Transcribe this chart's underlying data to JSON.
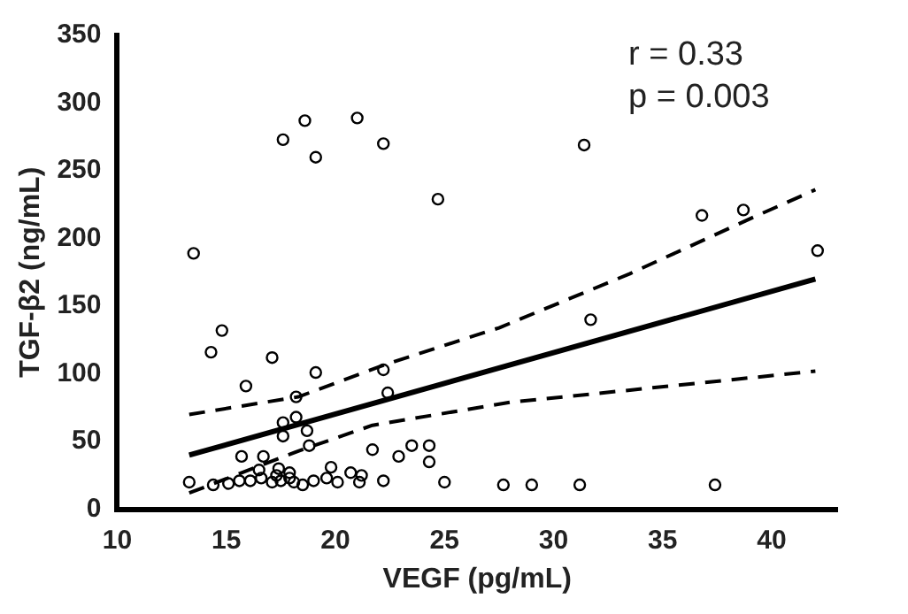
{
  "chart_data": {
    "type": "scatter",
    "xlabel": "VEGF (pg/mL)",
    "ylabel": "TGF-β2 (ng/mL)",
    "xlim": [
      10,
      43
    ],
    "xticks": [
      10,
      15,
      20,
      25,
      30,
      35,
      40
    ],
    "ylim": [
      0,
      350
    ],
    "yticks": [
      0,
      50,
      100,
      150,
      200,
      250,
      300,
      350
    ],
    "grid": false,
    "legend": false,
    "annotations": [
      "r = 0.33",
      "p = 0.003"
    ],
    "series": [
      {
        "type": "scatter",
        "color": "#000000",
        "marker": "circle",
        "x": [
          13.5,
          17.6,
          18.6,
          19.1,
          21.0,
          22.2,
          24.7,
          31.4,
          36.8,
          38.7,
          42.1,
          31.7,
          29.0,
          31.2,
          37.4,
          14.8,
          14.3,
          17.1,
          15.9,
          19.1,
          22.2,
          22.4,
          18.2,
          17.6,
          18.2,
          17.6,
          18.7,
          18.8,
          15.7,
          16.7,
          21.7,
          22.9,
          23.5,
          24.3,
          24.3,
          19.8,
          20.7,
          21.2,
          22.2,
          25.0,
          27.7,
          13.3,
          14.4,
          15.1,
          15.6,
          16.1,
          16.6,
          17.1,
          17.3,
          17.5,
          17.9,
          18.1,
          18.5,
          19.0,
          19.6,
          20.1,
          17.4,
          17.9,
          16.5,
          21.1
        ],
        "values": [
          189,
          273,
          287,
          260,
          289,
          270,
          229,
          269,
          217,
          221,
          191,
          140,
          18,
          18,
          18,
          132,
          116,
          112,
          91,
          101,
          103,
          86,
          83,
          64,
          68,
          54,
          58,
          47,
          39,
          39,
          44,
          39,
          47,
          47,
          35,
          31,
          27,
          25,
          21,
          20,
          18,
          20,
          18,
          19,
          21,
          21,
          23,
          20,
          25,
          21,
          23,
          20,
          18,
          21,
          23,
          20,
          30,
          27,
          29,
          20
        ]
      },
      {
        "type": "line",
        "color": "#000000",
        "line_style": "solid",
        "marker": "none",
        "x": [
          13.3,
          42
        ],
        "values": [
          40,
          170
        ]
      },
      {
        "type": "line",
        "color": "#000000",
        "line_style": "dashed",
        "marker": "none",
        "x": [
          13.3,
          18.3,
          22.3,
          27.5,
          33.5,
          39.2,
          42
        ],
        "values": [
          70,
          83,
          107,
          134,
          174,
          216,
          236
        ]
      },
      {
        "type": "line",
        "color": "#000000",
        "line_style": "dashed",
        "marker": "none",
        "x": [
          13.3,
          18.3,
          21.7,
          28,
          33.5,
          42
        ],
        "values": [
          12,
          43,
          62,
          79,
          88,
          102
        ]
      }
    ]
  }
}
